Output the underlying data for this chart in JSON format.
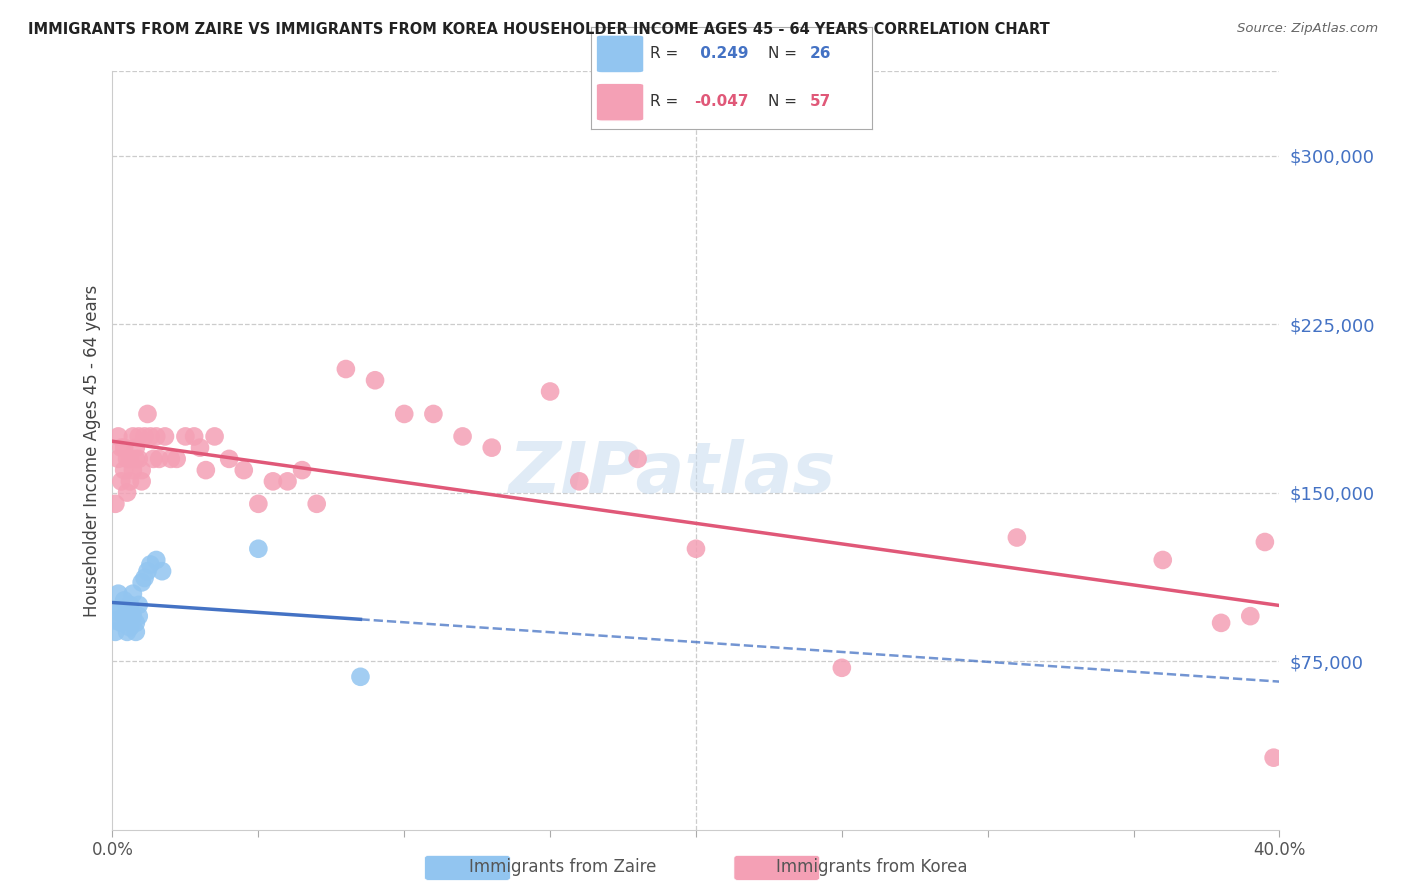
{
  "title": "IMMIGRANTS FROM ZAIRE VS IMMIGRANTS FROM KOREA HOUSEHOLDER INCOME AGES 45 - 64 YEARS CORRELATION CHART",
  "source": "Source: ZipAtlas.com",
  "ylabel": "Householder Income Ages 45 - 64 years",
  "xlim": [
    0.0,
    0.4
  ],
  "ylim": [
    0,
    337500
  ],
  "yticks_right": [
    75000,
    150000,
    225000,
    300000
  ],
  "ytick_labels_right": [
    "$75,000",
    "$150,000",
    "$225,000",
    "$300,000"
  ],
  "color_zaire": "#92C5F0",
  "color_korea": "#F4A0B5",
  "color_trendline_zaire": "#4472C4",
  "color_trendline_korea": "#E05878",
  "background_color": "#FFFFFF",
  "zaire_x": [
    0.001,
    0.001,
    0.002,
    0.002,
    0.003,
    0.003,
    0.004,
    0.004,
    0.005,
    0.005,
    0.006,
    0.006,
    0.007,
    0.007,
    0.008,
    0.008,
    0.009,
    0.009,
    0.01,
    0.011,
    0.012,
    0.013,
    0.015,
    0.017,
    0.05,
    0.085
  ],
  "zaire_y": [
    93000,
    88000,
    97000,
    105000,
    92000,
    98000,
    95000,
    102000,
    88000,
    95000,
    100000,
    90000,
    95000,
    105000,
    92000,
    88000,
    100000,
    95000,
    110000,
    112000,
    115000,
    118000,
    120000,
    115000,
    125000,
    68000
  ],
  "korea_x": [
    0.001,
    0.002,
    0.002,
    0.003,
    0.003,
    0.004,
    0.004,
    0.005,
    0.005,
    0.006,
    0.006,
    0.007,
    0.007,
    0.008,
    0.008,
    0.009,
    0.009,
    0.01,
    0.01,
    0.011,
    0.012,
    0.013,
    0.014,
    0.015,
    0.016,
    0.018,
    0.02,
    0.022,
    0.025,
    0.028,
    0.03,
    0.032,
    0.035,
    0.04,
    0.045,
    0.05,
    0.055,
    0.06,
    0.065,
    0.07,
    0.08,
    0.09,
    0.1,
    0.11,
    0.12,
    0.13,
    0.15,
    0.16,
    0.18,
    0.2,
    0.25,
    0.31,
    0.36,
    0.38,
    0.39,
    0.395,
    0.398
  ],
  "korea_y": [
    145000,
    165000,
    175000,
    155000,
    170000,
    160000,
    170000,
    150000,
    165000,
    155000,
    165000,
    175000,
    160000,
    170000,
    165000,
    175000,
    165000,
    155000,
    160000,
    175000,
    185000,
    175000,
    165000,
    175000,
    165000,
    175000,
    165000,
    165000,
    175000,
    175000,
    170000,
    160000,
    175000,
    165000,
    160000,
    145000,
    155000,
    155000,
    160000,
    145000,
    205000,
    200000,
    185000,
    185000,
    175000,
    170000,
    195000,
    155000,
    165000,
    125000,
    72000,
    130000,
    120000,
    92000,
    95000,
    128000,
    32000
  ]
}
